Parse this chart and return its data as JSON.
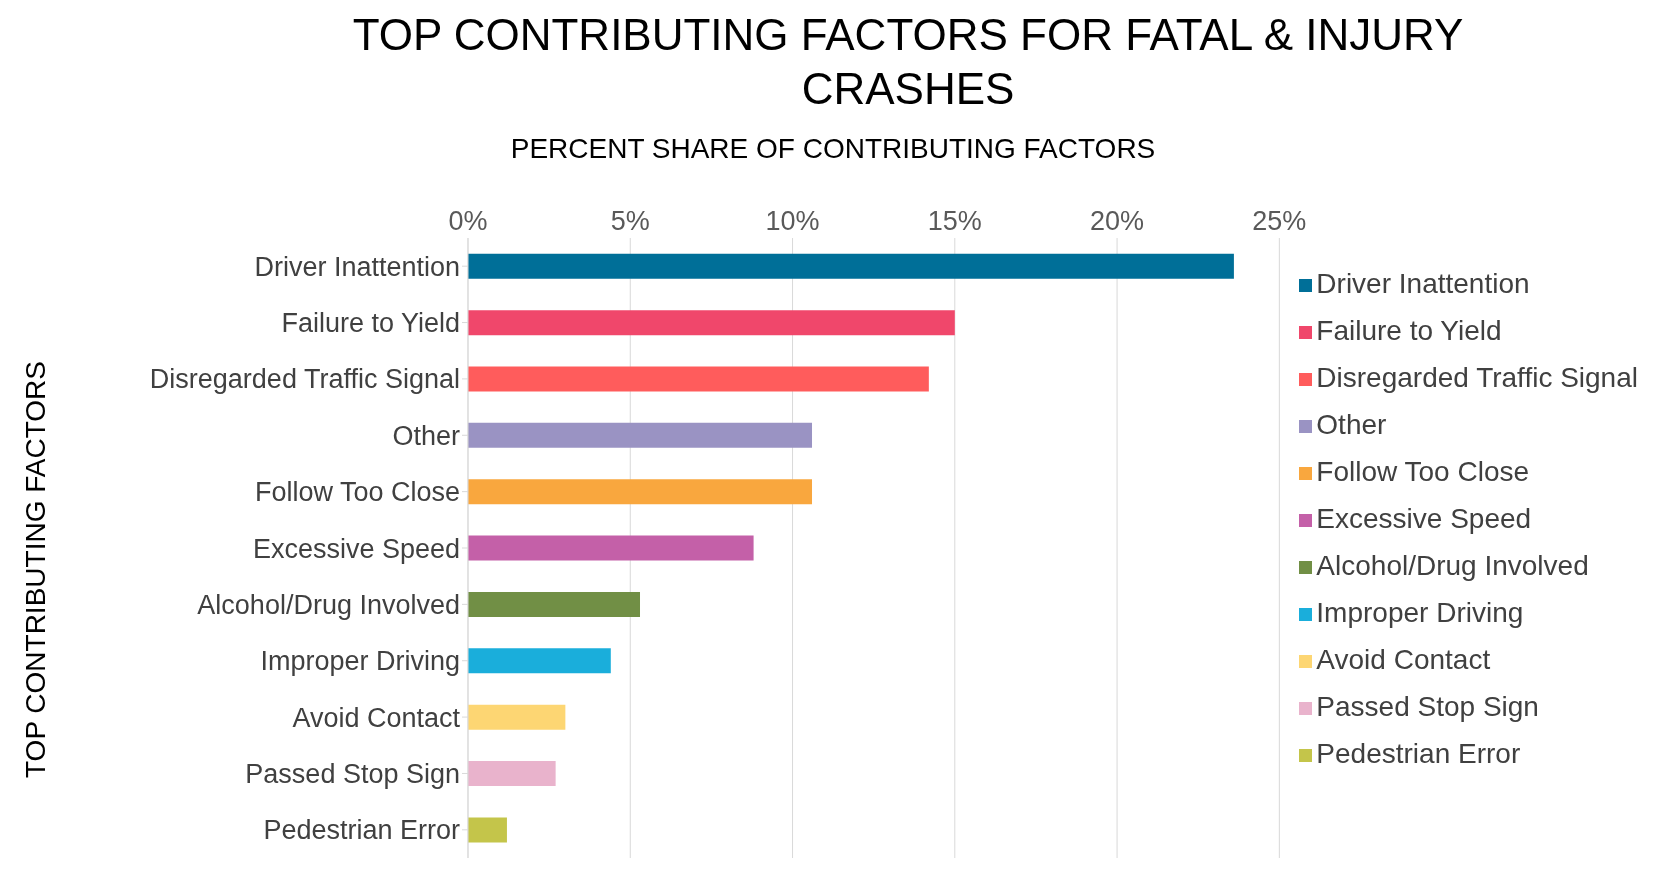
{
  "chart_data": {
    "type": "bar",
    "orientation": "horizontal",
    "stacked": true,
    "title": "TOP CONTRIBUTING FACTORS FOR FATAL & INJURY CRASHES",
    "xlabel": "PERCENT SHARE OF CONTRIBUTING FACTORS",
    "ylabel": "TOP CONTRIBUTING FACTORS",
    "categories": [
      "Driver Inattention",
      "Failure to Yield",
      "Disregarded Traffic Signal",
      "Other",
      "Follow Too Close",
      "Excessive Speed",
      "Alcohol/Drug Involved",
      "Improper Driving",
      "Avoid Contact",
      "Passed Stop Sign",
      "Pedestrian Error"
    ],
    "series": [
      {
        "name": "Driver Inattention",
        "color": "#006f98",
        "values": [
          23.6,
          null,
          null,
          null,
          null,
          null,
          null,
          null,
          null,
          null,
          null
        ]
      },
      {
        "name": "Failure to Yield",
        "color": "#f0476b",
        "values": [
          null,
          15.0,
          null,
          null,
          null,
          null,
          null,
          null,
          null,
          null,
          null
        ]
      },
      {
        "name": "Disregarded Traffic Signal",
        "color": "#ff5c5c",
        "values": [
          null,
          null,
          14.2,
          null,
          null,
          null,
          null,
          null,
          null,
          null,
          null
        ]
      },
      {
        "name": "Other",
        "color": "#9a93c3",
        "values": [
          null,
          null,
          null,
          10.6,
          null,
          null,
          null,
          null,
          null,
          null,
          null
        ]
      },
      {
        "name": "Follow Too Close",
        "color": "#f9a73e",
        "values": [
          null,
          null,
          null,
          null,
          10.6,
          null,
          null,
          null,
          null,
          null,
          null
        ]
      },
      {
        "name": "Excessive Speed",
        "color": "#c460a8",
        "values": [
          null,
          null,
          null,
          null,
          null,
          8.8,
          null,
          null,
          null,
          null,
          null
        ]
      },
      {
        "name": "Alcohol/Drug Involved",
        "color": "#718f45",
        "values": [
          null,
          null,
          null,
          null,
          null,
          null,
          5.3,
          null,
          null,
          null,
          null
        ]
      },
      {
        "name": "Improper Driving",
        "color": "#1aaedb",
        "values": [
          null,
          null,
          null,
          null,
          null,
          null,
          null,
          4.4,
          null,
          null,
          null
        ]
      },
      {
        "name": "Avoid Contact",
        "color": "#fdd673",
        "values": [
          null,
          null,
          null,
          null,
          null,
          null,
          null,
          null,
          3.0,
          null,
          null
        ]
      },
      {
        "name": "Passed Stop Sign",
        "color": "#e9b3cc",
        "values": [
          null,
          null,
          null,
          null,
          null,
          null,
          null,
          null,
          null,
          2.7,
          null
        ]
      },
      {
        "name": "Pedestrian Error",
        "color": "#c4c54a",
        "values": [
          null,
          null,
          null,
          null,
          null,
          null,
          null,
          null,
          null,
          null,
          1.2
        ]
      }
    ],
    "xlim": [
      0,
      25
    ],
    "xticks": [
      {
        "value": 0,
        "label": "0%"
      },
      {
        "value": 5,
        "label": "5%"
      },
      {
        "value": 10,
        "label": "10%"
      },
      {
        "value": 15,
        "label": "15%"
      },
      {
        "value": 20,
        "label": "20%"
      },
      {
        "value": 25,
        "label": "25%"
      }
    ],
    "grid": "x",
    "legend": "right"
  }
}
